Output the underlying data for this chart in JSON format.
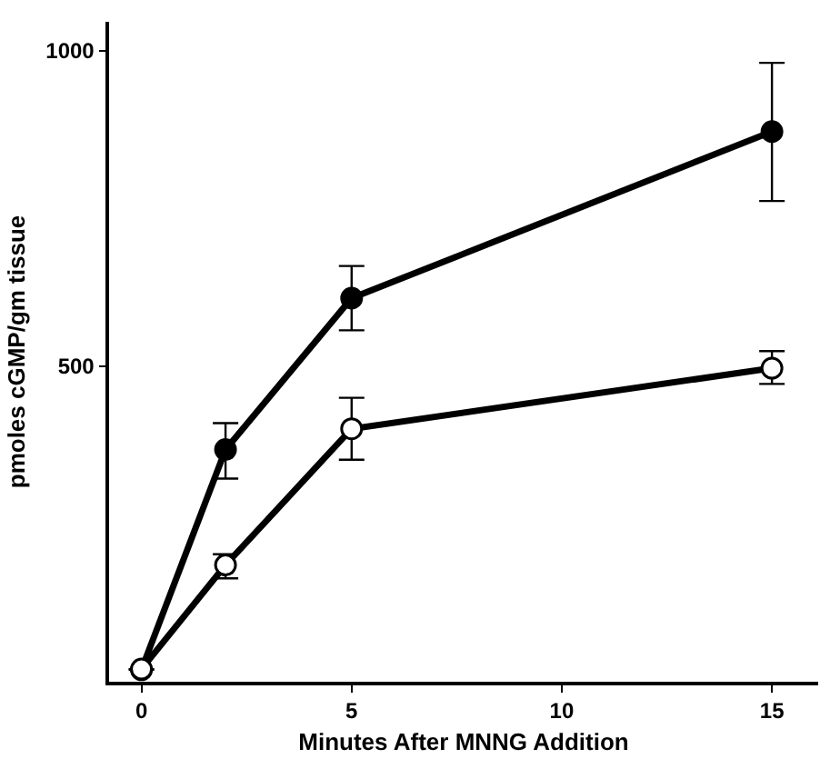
{
  "chart_data": {
    "type": "line",
    "xlabel": "Minutes After MNNG Addition",
    "ylabel": "pmoles cGMP/gm tissue",
    "xlim": [
      -0.77,
      16.1
    ],
    "ylim": [
      0,
      1046
    ],
    "xticks": [
      0,
      5,
      10,
      15
    ],
    "yticks": [
      500,
      1000
    ],
    "grid": false,
    "marker": "circle",
    "line_style": "solid",
    "series": [
      {
        "color": "#000000",
        "x": [
          0,
          2,
          5,
          15
        ],
        "values": [
          19,
          368,
          608,
          872
        ],
        "errors": [
          null,
          [
            322,
            410
          ],
          [
            557,
            659
          ],
          [
            762,
            981
          ]
        ]
      },
      {
        "color": "#000000",
        "colors": [
          "#ffffff",
          "#ffffff",
          "#ffffff",
          "#ffffff"
        ],
        "x": [
          0,
          2,
          5,
          15
        ],
        "values": [
          20,
          185,
          401,
          497
        ],
        "errors": [
          null,
          [
            164,
            202
          ],
          [
            352,
            450
          ],
          [
            472,
            524
          ]
        ]
      }
    ]
  }
}
